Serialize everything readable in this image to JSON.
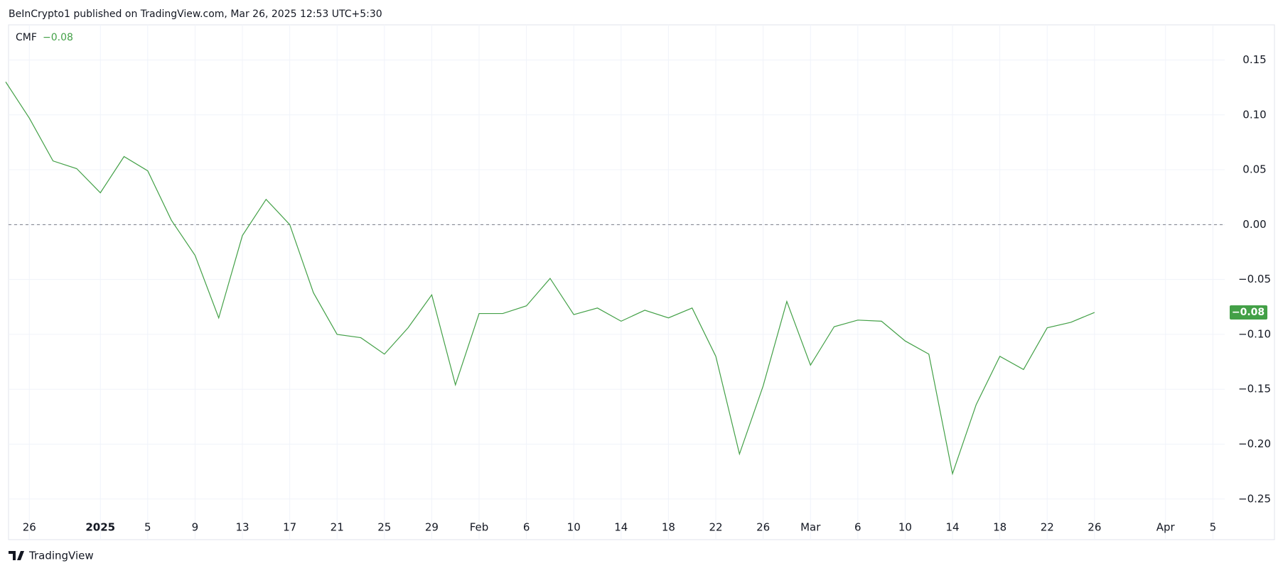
{
  "chart_data": {
    "type": "line",
    "header": "BeInCrypto1 published on TradingView.com, Mar 26, 2025 12:53 UTC+5:30",
    "footer_logo": "TradingView",
    "x": [
      "2024-12-24",
      "2024-12-26",
      "2024-12-28",
      "2024-12-30",
      "2025-01-01",
      "2025-01-03",
      "2025-01-05",
      "2025-01-07",
      "2025-01-09",
      "2025-01-11",
      "2025-01-13",
      "2025-01-15",
      "2025-01-17",
      "2025-01-19",
      "2025-01-21",
      "2025-01-23",
      "2025-01-25",
      "2025-01-27",
      "2025-01-29",
      "2025-01-31",
      "2025-02-02",
      "2025-02-04",
      "2025-02-06",
      "2025-02-08",
      "2025-02-10",
      "2025-02-12",
      "2025-02-14",
      "2025-02-16",
      "2025-02-18",
      "2025-02-20",
      "2025-02-22",
      "2025-02-24",
      "2025-02-26",
      "2025-02-28",
      "2025-03-02",
      "2025-03-04",
      "2025-03-06",
      "2025-03-08",
      "2025-03-10",
      "2025-03-12",
      "2025-03-14",
      "2025-03-16",
      "2025-03-18",
      "2025-03-20",
      "2025-03-22",
      "2025-03-24",
      "2025-03-26"
    ],
    "series": [
      {
        "name": "CMF",
        "color": "#43a047",
        "value_label": "−0.08",
        "values": [
          0.13,
          0.097,
          0.058,
          0.051,
          0.029,
          0.062,
          0.049,
          0.004,
          -0.028,
          -0.085,
          -0.01,
          0.023,
          0.0,
          -0.062,
          -0.1,
          -0.103,
          -0.118,
          -0.094,
          -0.064,
          -0.146,
          -0.081,
          -0.081,
          -0.074,
          -0.049,
          -0.082,
          -0.076,
          -0.088,
          -0.078,
          -0.085,
          -0.076,
          -0.12,
          -0.209,
          -0.147,
          -0.07,
          -0.128,
          -0.093,
          -0.087,
          -0.088,
          -0.106,
          -0.118,
          -0.227,
          -0.164,
          -0.12,
          -0.132,
          -0.094,
          -0.089,
          -0.08
        ]
      }
    ],
    "xlim": [
      "2024-12-24",
      "2025-04-06"
    ],
    "xticks": [
      {
        "value": "2024-12-26",
        "label": "26"
      },
      {
        "value": "2025-01-01",
        "label": "2025"
      },
      {
        "value": "2025-01-05",
        "label": "5"
      },
      {
        "value": "2025-01-09",
        "label": "9"
      },
      {
        "value": "2025-01-13",
        "label": "13"
      },
      {
        "value": "2025-01-17",
        "label": "17"
      },
      {
        "value": "2025-01-21",
        "label": "21"
      },
      {
        "value": "2025-01-25",
        "label": "25"
      },
      {
        "value": "2025-01-29",
        "label": "29"
      },
      {
        "value": "2025-02-02",
        "label": "Feb"
      },
      {
        "value": "2025-02-06",
        "label": "6"
      },
      {
        "value": "2025-02-10",
        "label": "10"
      },
      {
        "value": "2025-02-14",
        "label": "14"
      },
      {
        "value": "2025-02-18",
        "label": "18"
      },
      {
        "value": "2025-02-22",
        "label": "22"
      },
      {
        "value": "2025-02-26",
        "label": "26"
      },
      {
        "value": "2025-03-02",
        "label": "Mar"
      },
      {
        "value": "2025-03-06",
        "label": "6"
      },
      {
        "value": "2025-03-10",
        "label": "10"
      },
      {
        "value": "2025-03-14",
        "label": "14"
      },
      {
        "value": "2025-03-18",
        "label": "18"
      },
      {
        "value": "2025-03-22",
        "label": "22"
      },
      {
        "value": "2025-03-26",
        "label": "26"
      },
      {
        "value": "2025-04-01",
        "label": "Apr"
      },
      {
        "value": "2025-04-05",
        "label": "5"
      }
    ],
    "ylim": [
      -0.287,
      0.182
    ],
    "yticks": [
      {
        "value": -0.25,
        "label": "−0.25"
      },
      {
        "value": -0.2,
        "label": "−0.20"
      },
      {
        "value": -0.15,
        "label": "−0.15"
      },
      {
        "value": -0.1,
        "label": "−0.10"
      },
      {
        "value": -0.05,
        "label": "−0.05"
      },
      {
        "value": 0,
        "label": "0.00"
      },
      {
        "value": 0.05,
        "label": "0.05"
      },
      {
        "value": 0.1,
        "label": "0.10"
      },
      {
        "value": 0.15,
        "label": "0.15"
      }
    ],
    "baseline": 0,
    "grid": true
  }
}
